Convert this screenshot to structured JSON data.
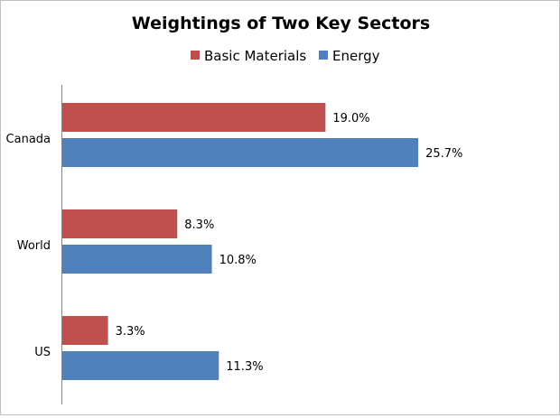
{
  "chart_data": {
    "type": "bar",
    "orientation": "horizontal",
    "title": "Weightings of Two Key Sectors",
    "categories": [
      "Canada",
      "World",
      "US"
    ],
    "series": [
      {
        "name": "Basic Materials",
        "color": "#c0504d",
        "values": [
          19.0,
          8.3,
          3.3
        ],
        "labels": [
          "19.0%",
          "8.3%",
          "3.3%"
        ]
      },
      {
        "name": "Energy",
        "color": "#4f81bd",
        "values": [
          25.7,
          10.8,
          11.3
        ],
        "labels": [
          "25.7%",
          "10.8%",
          "11.3%"
        ]
      }
    ],
    "xlim": [
      0,
      30
    ],
    "grid": false,
    "legend_position": "top"
  }
}
